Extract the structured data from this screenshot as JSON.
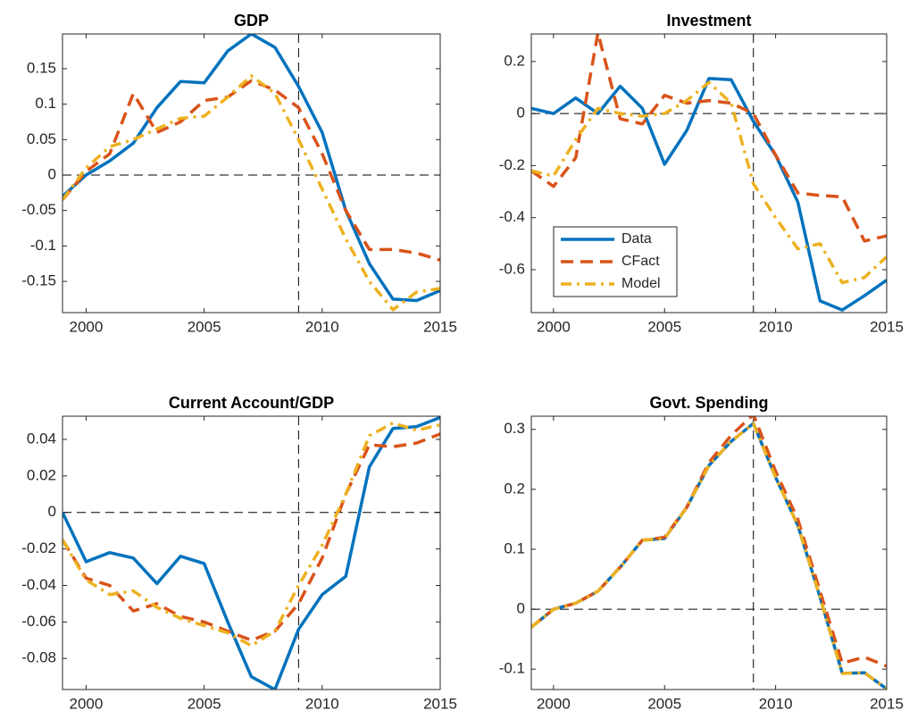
{
  "chart_data": [
    {
      "type": "line",
      "title": "GDP",
      "x": [
        1999,
        2000,
        2001,
        2002,
        2003,
        2004,
        2005,
        2006,
        2007,
        2008,
        2009,
        2010,
        2011,
        2012,
        2013,
        2014,
        2015
      ],
      "xlim": [
        1999,
        2015
      ],
      "xticks": [
        2000,
        2005,
        2010,
        2015
      ],
      "ylim": [
        -0.194,
        0.199
      ],
      "yticks": [
        -0.15,
        -0.1,
        -0.05,
        0,
        0.05,
        0.1,
        0.15
      ],
      "vline": 2009,
      "hline": 0,
      "series": [
        {
          "name": "Data",
          "color": "#0072BD",
          "line_style": "solid",
          "values": [
            -0.03,
            0.0,
            0.02,
            0.045,
            0.095,
            0.132,
            0.13,
            0.175,
            0.199,
            0.18,
            0.125,
            0.06,
            -0.05,
            -0.125,
            -0.175,
            -0.177,
            -0.163
          ]
        },
        {
          "name": "CFact",
          "color": "#D95319",
          "line_style": "dashed",
          "values": [
            -0.035,
            0.005,
            0.03,
            0.115,
            0.06,
            0.075,
            0.105,
            0.11,
            0.133,
            0.12,
            0.095,
            0.03,
            -0.05,
            -0.105,
            -0.105,
            -0.11,
            -0.12
          ]
        },
        {
          "name": "Model",
          "color": "#EDB120",
          "line_style": "dashdot",
          "values": [
            -0.035,
            0.01,
            0.04,
            0.05,
            0.065,
            0.08,
            0.083,
            0.11,
            0.14,
            0.115,
            0.05,
            -0.02,
            -0.09,
            -0.15,
            -0.19,
            -0.165,
            -0.16
          ]
        }
      ]
    },
    {
      "type": "line",
      "title": "Investment",
      "x": [
        1999,
        2000,
        2001,
        2002,
        2003,
        2004,
        2005,
        2006,
        2007,
        2008,
        2009,
        2010,
        2011,
        2012,
        2013,
        2014,
        2015
      ],
      "xlim": [
        1999,
        2015
      ],
      "xticks": [
        2000,
        2005,
        2010,
        2015
      ],
      "ylim": [
        -0.765,
        0.306
      ],
      "yticks": [
        -0.6,
        -0.4,
        -0.2,
        0,
        0.2
      ],
      "vline": 2009,
      "hline": 0,
      "legend": "southwest",
      "series": [
        {
          "name": "Data",
          "color": "#0072BD",
          "line_style": "solid",
          "values": [
            0.02,
            0.0,
            0.06,
            0.0,
            0.105,
            0.02,
            -0.195,
            -0.065,
            0.135,
            0.13,
            -0.03,
            -0.16,
            -0.34,
            -0.72,
            -0.755,
            -0.7,
            -0.64
          ]
        },
        {
          "name": "CFact",
          "color": "#D95319",
          "line_style": "dashed",
          "values": [
            -0.22,
            -0.28,
            -0.17,
            0.31,
            -0.02,
            -0.04,
            0.07,
            0.04,
            0.05,
            0.04,
            0.0,
            -0.16,
            -0.305,
            -0.315,
            -0.32,
            -0.49,
            -0.47
          ]
        },
        {
          "name": "Model",
          "color": "#EDB120",
          "line_style": "dashdot",
          "values": [
            -0.22,
            -0.24,
            -0.1,
            0.02,
            0.0,
            -0.01,
            0.0,
            0.05,
            0.12,
            0.04,
            -0.27,
            -0.4,
            -0.52,
            -0.5,
            -0.65,
            -0.63,
            -0.55
          ]
        }
      ]
    },
    {
      "type": "line",
      "title": "Current Account/GDP",
      "x": [
        1999,
        2000,
        2001,
        2002,
        2003,
        2004,
        2005,
        2006,
        2007,
        2008,
        2009,
        2010,
        2011,
        2012,
        2013,
        2014,
        2015
      ],
      "xlim": [
        1999,
        2015
      ],
      "xticks": [
        2000,
        2005,
        2010,
        2015
      ],
      "ylim": [
        -0.097,
        0.0527
      ],
      "yticks": [
        -0.08,
        -0.06,
        -0.04,
        -0.02,
        0,
        0.02,
        0.04
      ],
      "vline": 2009,
      "hline": 0,
      "series": [
        {
          "name": "Data",
          "color": "#0072BD",
          "line_style": "solid",
          "values": [
            0.0,
            -0.027,
            -0.022,
            -0.025,
            -0.039,
            -0.024,
            -0.028,
            -0.06,
            -0.09,
            -0.097,
            -0.064,
            -0.045,
            -0.035,
            0.025,
            0.046,
            0.047,
            0.052
          ]
        },
        {
          "name": "CFact",
          "color": "#D95319",
          "line_style": "dashed",
          "values": [
            -0.015,
            -0.036,
            -0.04,
            -0.054,
            -0.05,
            -0.057,
            -0.06,
            -0.065,
            -0.07,
            -0.065,
            -0.05,
            -0.025,
            0.01,
            0.037,
            0.036,
            0.038,
            0.043
          ]
        },
        {
          "name": "Model",
          "color": "#EDB120",
          "line_style": "dashdot",
          "values": [
            -0.015,
            -0.037,
            -0.045,
            -0.043,
            -0.052,
            -0.058,
            -0.062,
            -0.066,
            -0.073,
            -0.065,
            -0.04,
            -0.018,
            0.01,
            0.042,
            0.049,
            0.045,
            0.048
          ]
        }
      ]
    },
    {
      "type": "line",
      "title": "Govt. Spending",
      "x": [
        1999,
        2000,
        2001,
        2002,
        2003,
        2004,
        2005,
        2006,
        2007,
        2008,
        2009,
        2010,
        2011,
        2012,
        2013,
        2014,
        2015
      ],
      "xlim": [
        1999,
        2015
      ],
      "xticks": [
        2000,
        2005,
        2010,
        2015
      ],
      "ylim": [
        -0.134,
        0.322
      ],
      "yticks": [
        -0.1,
        0,
        0.1,
        0.2,
        0.3
      ],
      "vline": 2009,
      "hline": 0,
      "series": [
        {
          "name": "Data",
          "color": "#0072BD",
          "line_style": "solid",
          "values": [
            -0.03,
            0.0,
            0.01,
            0.03,
            0.07,
            0.115,
            0.118,
            0.17,
            0.24,
            0.28,
            0.31,
            0.22,
            0.14,
            0.02,
            -0.107,
            -0.106,
            -0.133
          ]
        },
        {
          "name": "CFact",
          "color": "#D95319",
          "line_style": "dashed",
          "values": [
            -0.03,
            0.0,
            0.01,
            0.03,
            0.07,
            0.115,
            0.12,
            0.17,
            0.245,
            0.29,
            0.325,
            0.23,
            0.15,
            0.03,
            -0.09,
            -0.08,
            -0.095
          ]
        },
        {
          "name": "Model",
          "color": "#EDB120",
          "line_style": "dashdot",
          "values": [
            -0.03,
            0.0,
            0.01,
            0.03,
            0.07,
            0.115,
            0.118,
            0.17,
            0.24,
            0.28,
            0.31,
            0.22,
            0.14,
            0.02,
            -0.107,
            -0.106,
            -0.133
          ]
        }
      ]
    }
  ]
}
